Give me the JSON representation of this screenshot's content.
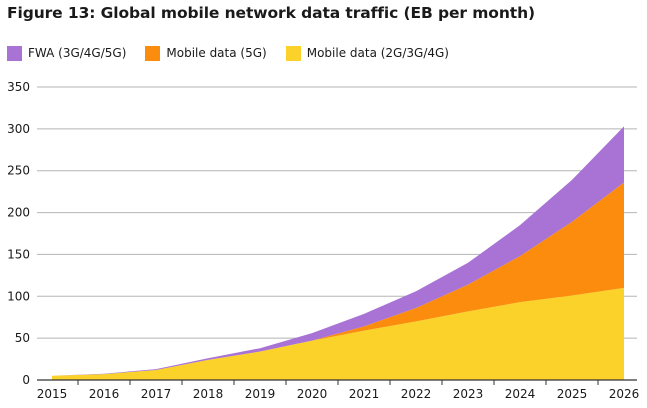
{
  "title": "Figure 13: Global mobile network data traffic (EB per month)",
  "colors": {
    "fwa": "#a873d4",
    "mobile_5g": "#fb8c0e",
    "mobile_2g4g": "#fad22a",
    "grid": "#b5b5b5",
    "axis": "#333333"
  },
  "chart_data": {
    "type": "area",
    "stacked": true,
    "title": "Figure 13: Global mobile network data traffic (EB per month)",
    "xlabel": "",
    "ylabel": "",
    "x": [
      "2015",
      "2016",
      "2017",
      "2018",
      "2019",
      "2020",
      "2021",
      "2022",
      "2023",
      "2024",
      "2025",
      "2026"
    ],
    "ylim": [
      0,
      350
    ],
    "yticks": [
      "0",
      "50",
      "100",
      "150",
      "200",
      "250",
      "300",
      "350"
    ],
    "grid": true,
    "legend_position": "top-left",
    "series": [
      {
        "name": "Mobile data (2G/3G/4G)",
        "color": "#fad22a",
        "values": [
          5,
          7,
          12,
          24,
          34,
          47,
          59,
          70,
          82,
          93,
          101,
          110
        ]
      },
      {
        "name": "Mobile data (5G)",
        "color": "#fb8c0e",
        "values": [
          0,
          0,
          0,
          0,
          0,
          0,
          5,
          16,
          32,
          55,
          88,
          126
        ]
      },
      {
        "name": "FWA (3G/4G/5G)",
        "color": "#a873d4",
        "values": [
          0,
          0.5,
          1,
          2,
          4,
          9,
          15,
          20,
          26,
          37,
          50,
          67
        ]
      }
    ]
  },
  "legend": [
    {
      "label": "FWA (3G/4G/5G)",
      "color": "#a873d4"
    },
    {
      "label": "Mobile data (5G)",
      "color": "#fb8c0e"
    },
    {
      "label": "Mobile data (2G/3G/4G)",
      "color": "#fad22a"
    }
  ]
}
